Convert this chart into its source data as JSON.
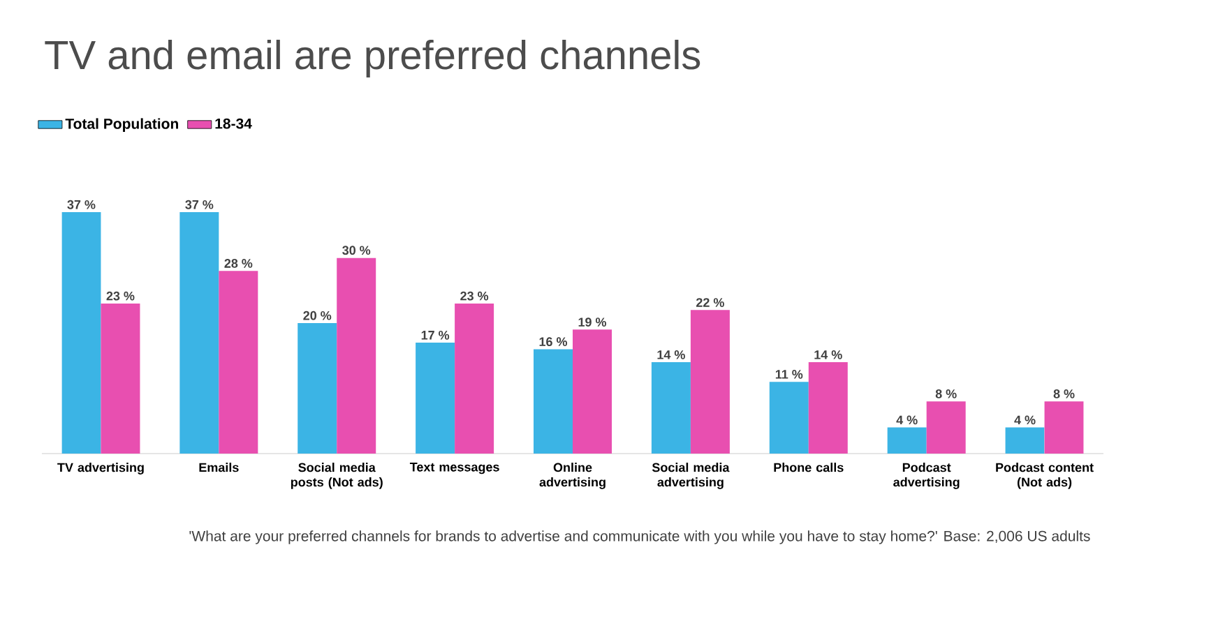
{
  "chart_data": {
    "type": "bar",
    "title": "TV and email are preferred channels",
    "categories": [
      "TV advertising",
      "Emails",
      "Social media posts (Not ads)",
      "Text messages",
      "Online advertising",
      "Social media advertising",
      "Phone calls",
      "Podcast advertising",
      "Podcast content (Not ads)"
    ],
    "series": [
      {
        "name": "Total Population",
        "color": "#3bb4e5",
        "values": [
          37,
          37,
          20,
          17,
          16,
          14,
          11,
          4,
          4
        ],
        "value_labels": [
          "37 %",
          "37 %",
          "20 %",
          "17 %",
          "16 %",
          "14 %",
          "11 %",
          "4 %",
          "4 %"
        ]
      },
      {
        "name": "18-34",
        "color": "#e84fb0",
        "values": [
          23,
          28,
          30,
          23,
          19,
          22,
          14,
          8,
          8
        ],
        "value_labels": [
          "23 %",
          "28 %",
          "30 %",
          "23 %",
          "19 %",
          "22 %",
          "14 %",
          "8 %",
          "8 %"
        ]
      }
    ],
    "legend": "top left",
    "annotations": [
      "'What are your preferred channels for brands to advertise and communicate with you while you have to stay home?' Base: 2,006 US adults"
    ]
  }
}
